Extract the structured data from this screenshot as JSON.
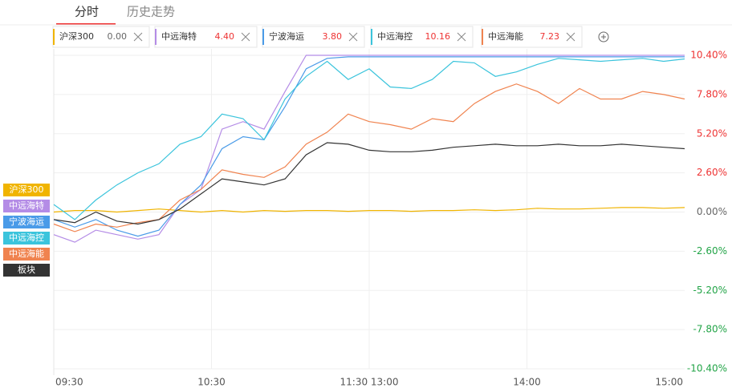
{
  "tabs": [
    "分时",
    "历史走势"
  ],
  "chart_data": {
    "type": "line",
    "x": [
      0,
      8,
      16,
      24,
      32,
      40,
      48,
      56,
      64,
      72,
      80,
      88,
      96,
      104,
      112,
      120,
      128,
      136,
      144,
      152,
      160,
      168,
      176,
      184,
      192,
      200,
      208,
      216,
      224,
      232,
      240
    ],
    "xlim": [
      0,
      240
    ],
    "xticks": [
      {
        "value": 0,
        "label": "09:30"
      },
      {
        "value": 60,
        "label": "10:30"
      },
      {
        "value": 120,
        "label": "11:30 13:00"
      },
      {
        "value": 180,
        "label": "14:00"
      },
      {
        "value": 240,
        "label": "15:00"
      }
    ],
    "ylim": [
      -10.4,
      10.4
    ],
    "yticks": [
      {
        "value": 10.4,
        "label": "10.40%"
      },
      {
        "value": 7.8,
        "label": "7.80%"
      },
      {
        "value": 5.2,
        "label": "5.20%"
      },
      {
        "value": 2.6,
        "label": "2.60%"
      },
      {
        "value": 0,
        "label": "0.00%"
      },
      {
        "value": -2.6,
        "label": "-2.60%"
      },
      {
        "value": -5.2,
        "label": "-5.20%"
      },
      {
        "value": -7.8,
        "label": "-7.80%"
      },
      {
        "value": -10.4,
        "label": "-10.40%"
      }
    ],
    "grid": true,
    "series": [
      {
        "name": "沪深300",
        "color": "#f0b400",
        "legend_label": "0.00",
        "values": [
          0,
          0.1,
          0.1,
          0,
          0.1,
          0.2,
          0.1,
          0,
          0.1,
          0,
          0.1,
          0.05,
          0.1,
          0.1,
          0.05,
          0.1,
          0.1,
          0.05,
          0.1,
          0.1,
          0.15,
          0.1,
          0.15,
          0.25,
          0.2,
          0.2,
          0.25,
          0.3,
          0.3,
          0.25,
          0.3
        ]
      },
      {
        "name": "中远海特",
        "color": "#b48ce6",
        "legend_label": "4.40",
        "values": [
          -1.5,
          -2,
          -1.2,
          -1.5,
          -1.8,
          -1.5,
          0.5,
          1.5,
          5.5,
          6,
          5.5,
          8,
          10.4,
          10.4,
          10.4,
          10.4,
          10.4,
          10.4,
          10.4,
          10.4,
          10.4,
          10.4,
          10.4,
          10.4,
          10.4,
          10.4,
          10.4,
          10.4,
          10.4,
          10.4,
          10.4
        ]
      },
      {
        "name": "宁波海运",
        "color": "#4a9be8",
        "legend_label": "3.80",
        "values": [
          -0.5,
          -1,
          -0.5,
          -1.2,
          -1.6,
          -1.2,
          0.5,
          1.8,
          4.2,
          5,
          4.8,
          7,
          9.5,
          10.2,
          10.3,
          10.3,
          10.3,
          10.3,
          10.3,
          10.3,
          10.3,
          10.3,
          10.3,
          10.3,
          10.3,
          10.3,
          10.3,
          10.3,
          10.3,
          10.3,
          10.3
        ]
      },
      {
        "name": "中远海控",
        "color": "#3bc4dc",
        "legend_label": "10.16",
        "values": [
          0.5,
          -0.5,
          0.8,
          1.8,
          2.6,
          3.2,
          4.5,
          5,
          6.5,
          6.2,
          4.8,
          7.5,
          9,
          10,
          8.8,
          9.5,
          8.3,
          8.2,
          8.8,
          10,
          9.9,
          9,
          9.3,
          9.8,
          10.2,
          10.1,
          10,
          10.1,
          10.2,
          10,
          10.16
        ]
      },
      {
        "name": "中远海能",
        "color": "#f0834f",
        "legend_label": "7.23",
        "values": [
          -0.8,
          -1.3,
          -0.8,
          -1,
          -0.7,
          -0.5,
          0.8,
          1.5,
          2.8,
          2.5,
          2.3,
          3,
          4.5,
          5.3,
          6.5,
          6,
          5.8,
          5.5,
          6.2,
          6,
          7.2,
          8,
          8.5,
          8,
          7.2,
          8.2,
          7.5,
          7.5,
          8,
          7.8,
          7.5
        ]
      },
      {
        "name": "板块",
        "color": "#333333",
        "values": [
          -0.5,
          -0.7,
          0,
          -0.6,
          -0.8,
          -0.5,
          0.2,
          1.2,
          2.2,
          2,
          1.8,
          2.2,
          3.8,
          4.6,
          4.5,
          4.1,
          4,
          4,
          4.1,
          4.3,
          4.4,
          4.5,
          4.4,
          4.4,
          4.5,
          4.4,
          4.4,
          4.5,
          4.4,
          4.3,
          4.2
        ]
      }
    ]
  }
}
